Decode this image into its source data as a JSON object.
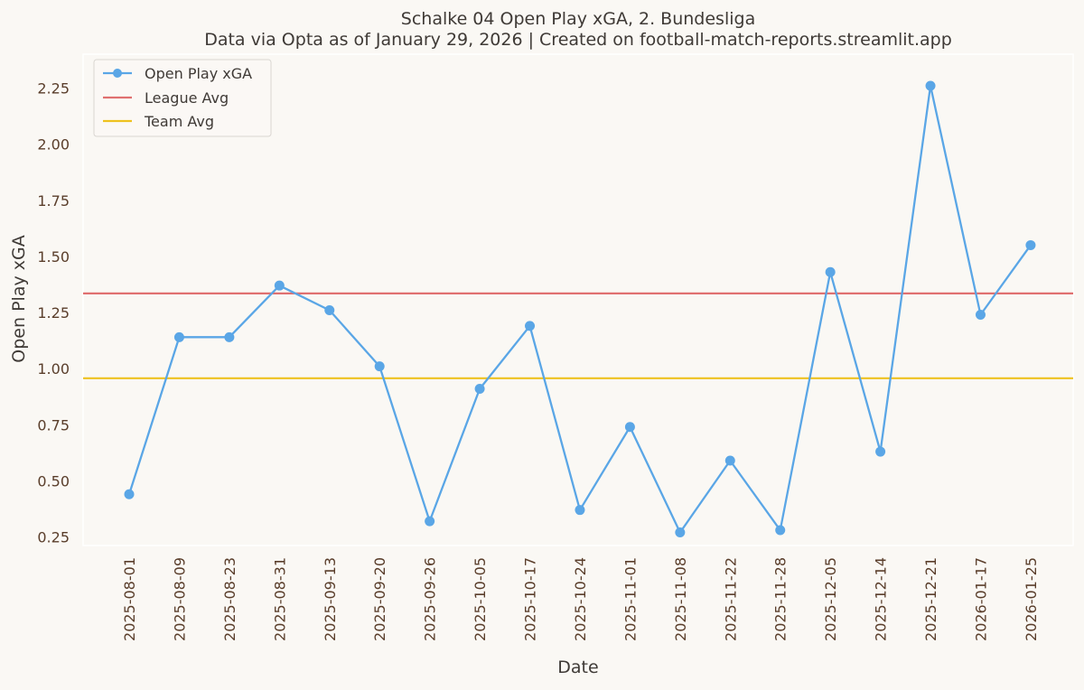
{
  "chart_data": {
    "type": "line",
    "title": "Schalke 04 Open Play xGA, 2. Bundesliga",
    "subtitle": "Data via Opta as of January 29, 2026 | Created on football-match-reports.streamlit.app",
    "xlabel": "Date",
    "ylabel": "Open Play xGA",
    "ylim": [
      0.18,
      2.33
    ],
    "yticks": [
      "0.25",
      "0.50",
      "0.75",
      "1.00",
      "1.25",
      "1.50",
      "1.75",
      "2.00",
      "2.25"
    ],
    "categories": [
      "2025-08-01",
      "2025-08-09",
      "2025-08-23",
      "2025-08-31",
      "2025-09-13",
      "2025-09-20",
      "2025-09-26",
      "2025-10-05",
      "2025-10-17",
      "2025-10-24",
      "2025-11-01",
      "2025-11-08",
      "2025-11-22",
      "2025-11-28",
      "2025-12-05",
      "2025-12-14",
      "2025-12-21",
      "2026-01-17",
      "2026-01-25"
    ],
    "series": [
      {
        "name": "Open Play xGA",
        "values": [
          0.44,
          1.14,
          1.14,
          1.37,
          1.26,
          1.01,
          0.32,
          0.91,
          1.19,
          0.37,
          0.74,
          0.27,
          0.59,
          0.28,
          1.43,
          0.63,
          2.26,
          1.24,
          1.55
        ],
        "color": "#5aa6e6"
      }
    ],
    "reference_lines": [
      {
        "name": "League Avg",
        "value": 1.335,
        "color": "#e07070"
      },
      {
        "name": "Team Avg",
        "value": 0.957,
        "color": "#eec21f"
      }
    ],
    "legend": {
      "placement": "top-left",
      "entries": [
        "Open Play xGA",
        "League Avg",
        "Team Avg"
      ]
    },
    "grid": false
  }
}
